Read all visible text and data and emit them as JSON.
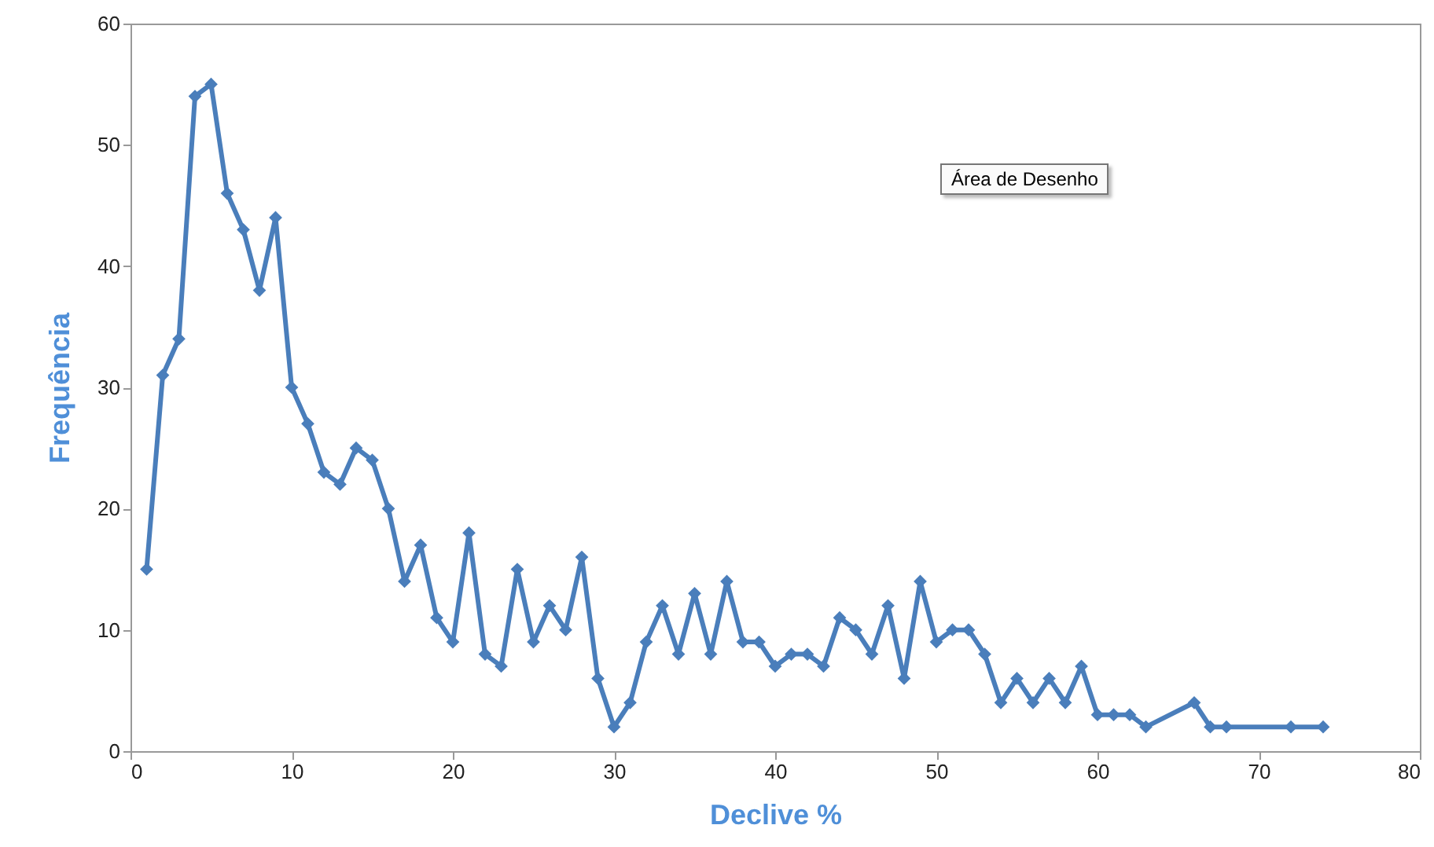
{
  "chart_data": {
    "type": "line",
    "xlabel": "Declive %",
    "ylabel": "Frequência",
    "annotations": [
      "Área de Desenho"
    ],
    "x": [
      1,
      2,
      3,
      4,
      5,
      6,
      7,
      8,
      9,
      10,
      11,
      12,
      13,
      14,
      15,
      16,
      17,
      18,
      19,
      20,
      21,
      22,
      23,
      24,
      25,
      26,
      27,
      28,
      29,
      30,
      31,
      32,
      33,
      34,
      35,
      36,
      37,
      38,
      39,
      40,
      41,
      42,
      43,
      44,
      45,
      46,
      47,
      48,
      49,
      50,
      51,
      52,
      53,
      54,
      55,
      56,
      57,
      58,
      59,
      60,
      61,
      62,
      63,
      66,
      67,
      68,
      72,
      74
    ],
    "series": [
      {
        "color": "#4a7ebb",
        "values": [
          15,
          31,
          34,
          54,
          55,
          46,
          43,
          38,
          44,
          30,
          27,
          23,
          22,
          25,
          24,
          20,
          14,
          17,
          11,
          9,
          18,
          8,
          7,
          15,
          9,
          12,
          10,
          16,
          6,
          2,
          4,
          9,
          12,
          8,
          13,
          8,
          14,
          9,
          9,
          7,
          8,
          8,
          7,
          11,
          10,
          8,
          12,
          6,
          14,
          9,
          10,
          10,
          8,
          4,
          6,
          4,
          6,
          4,
          7,
          3,
          3,
          3,
          2,
          4,
          2,
          2,
          2,
          2
        ]
      }
    ],
    "xlim": [
      0,
      80
    ],
    "xticks": [
      0,
      10,
      20,
      30,
      40,
      50,
      60,
      70,
      80
    ],
    "ylim": [
      0,
      60
    ],
    "yticks": [
      0,
      10,
      20,
      30,
      40,
      50,
      60
    ],
    "grid": false,
    "marker": "diamond",
    "line_style": "solid"
  }
}
